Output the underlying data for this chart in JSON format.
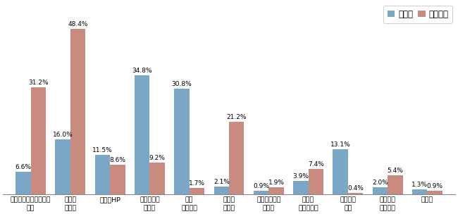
{
  "categories": [
    "奨学金申請・採用時の\n資料",
    "返還の\nてびき",
    "機構のHP",
    "機構からの\n通知で",
    "相談\nセンター",
    "学校の\n説明会",
    "連帯保証人・\n保証人",
    "家族、\n友人・知人",
    "債権回収\n会社",
    "テレビ・\n新聴など",
    "その他"
  ],
  "entaisha": [
    6.6,
    16.0,
    11.5,
    34.8,
    30.8,
    2.1,
    0.9,
    3.9,
    13.1,
    2.0,
    1.3
  ],
  "muentaisha": [
    31.2,
    48.4,
    8.6,
    9.2,
    1.7,
    21.2,
    1.9,
    7.4,
    0.4,
    5.4,
    0.9
  ],
  "entaisha_label": "延滞者",
  "muentaisha_label": "無延滞者",
  "color_entaisha": "#7BA7C7",
  "color_muentaisha": "#C98B80",
  "ylim": [
    0,
    56
  ],
  "bar_width": 0.38,
  "fig_width": 6.5,
  "fig_height": 3.04,
  "label_fontsize": 6.5,
  "tick_fontsize": 6.8,
  "legend_fontsize": 8.5
}
